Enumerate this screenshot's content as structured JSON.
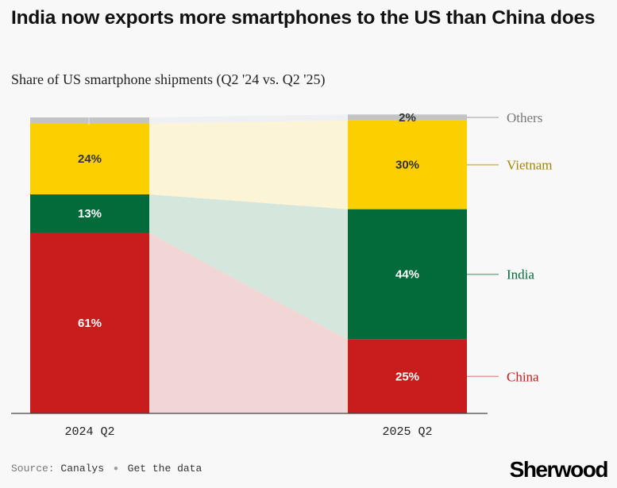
{
  "title": "India now exports more smartphones to the US than China does",
  "subtitle": "Share of US smartphone shipments (Q2 '24 vs. Q2 '25)",
  "footer": {
    "source_label": "Source:",
    "source_name": "Canalys",
    "link_text": "Get the data"
  },
  "brand": "Sherwood",
  "colors": {
    "China": "#c91c1c",
    "India": "#036a39",
    "Vietnam": "#fccf00",
    "Others": "#c3c3c3",
    "China_flow": "#f2d6d6",
    "India_flow": "#d5e6dd",
    "Vietnam_flow": "#fbf4d7",
    "Others_flow": "#eef0f3",
    "China_legend": "#c91c1c",
    "India_legend": "#036a39",
    "Vietnam_legend": "#a38500",
    "Others_legend": "#777777",
    "China_leader": "#e29999",
    "India_leader": "#7fb49b",
    "Vietnam_leader": "#d9bb55",
    "Others_leader": "#bbbbbb"
  },
  "chart_data": {
    "type": "stacked_bar",
    "categories": [
      "2024 Q2",
      "2025 Q2"
    ],
    "series": [
      {
        "name": "China",
        "values": [
          61,
          25
        ]
      },
      {
        "name": "India",
        "values": [
          13,
          44
        ]
      },
      {
        "name": "Vietnam",
        "values": [
          24,
          30
        ]
      },
      {
        "name": "Others",
        "values": [
          2,
          2
        ]
      }
    ],
    "data_labels": [
      [
        "61%",
        "25%"
      ],
      [
        "13%",
        "44%"
      ],
      [
        "24%",
        "30%"
      ],
      [
        "",
        "2%"
      ]
    ],
    "legend": [
      "Others",
      "Vietnam",
      "India",
      "China"
    ],
    "unit": "%",
    "ylim": [
      0,
      100
    ]
  }
}
